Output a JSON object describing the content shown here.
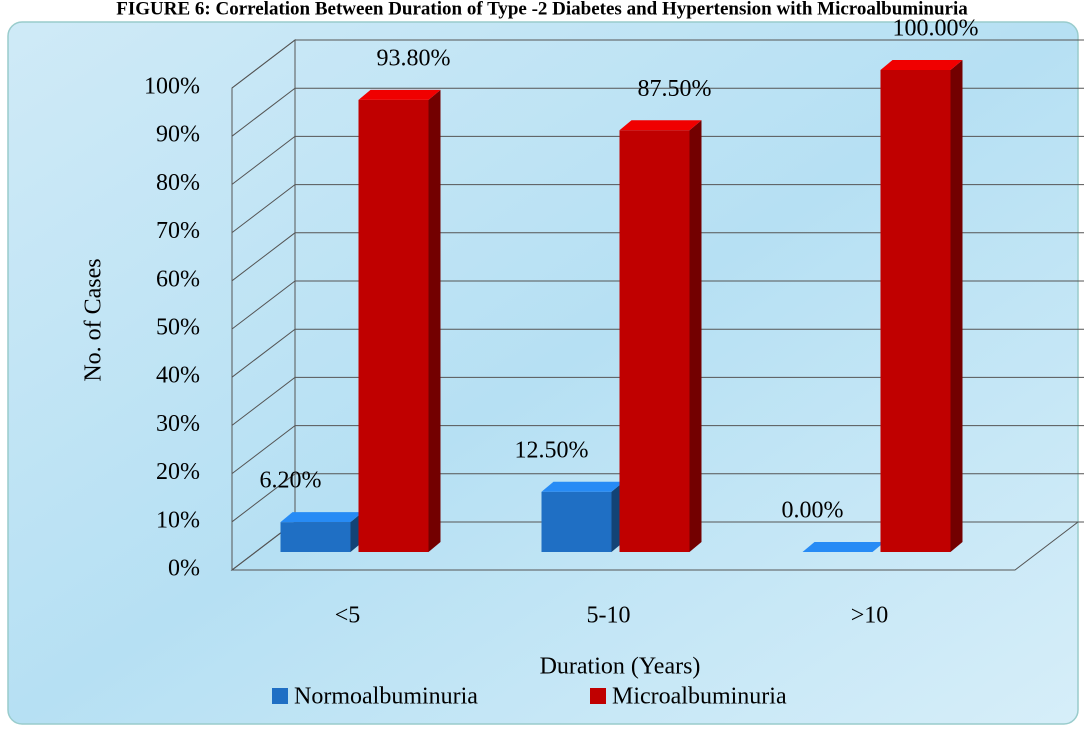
{
  "chart_data": {
    "type": "bar3d",
    "title": "FIGURE 6: Correlation Between Duration of Type -2 Diabetes and Hypertension with Microalbuminuria",
    "x_label": "Duration (Years)",
    "y_label": "No. of Cases",
    "categories": [
      "<5",
      "5-10",
      ">10"
    ],
    "series": [
      {
        "name": "Normoalbuminuria",
        "color": "#1f6fc4",
        "values": [
          6.2,
          12.5,
          0
        ],
        "value_labels": [
          "6.20%",
          "12.50%",
          "0.00%"
        ]
      },
      {
        "name": "Microalbuminuria",
        "color": "#c00000",
        "values": [
          93.8,
          87.5,
          100
        ],
        "value_labels": [
          "93.80%",
          "87.50%",
          "100.00%"
        ]
      }
    ],
    "ylim": [
      0,
      100
    ],
    "yticks": [
      {
        "value": 0,
        "label": "0%"
      },
      {
        "value": 10,
        "label": "10%"
      },
      {
        "value": 20,
        "label": "20%"
      },
      {
        "value": 30,
        "label": "30%"
      },
      {
        "value": 40,
        "label": "40%"
      },
      {
        "value": 50,
        "label": "50%"
      },
      {
        "value": 60,
        "label": "60%"
      },
      {
        "value": 70,
        "label": "70%"
      },
      {
        "value": 80,
        "label": "80%"
      },
      {
        "value": 90,
        "label": "90%"
      },
      {
        "value": 100,
        "label": "100%"
      }
    ],
    "grid": true,
    "legend": "bottom"
  }
}
